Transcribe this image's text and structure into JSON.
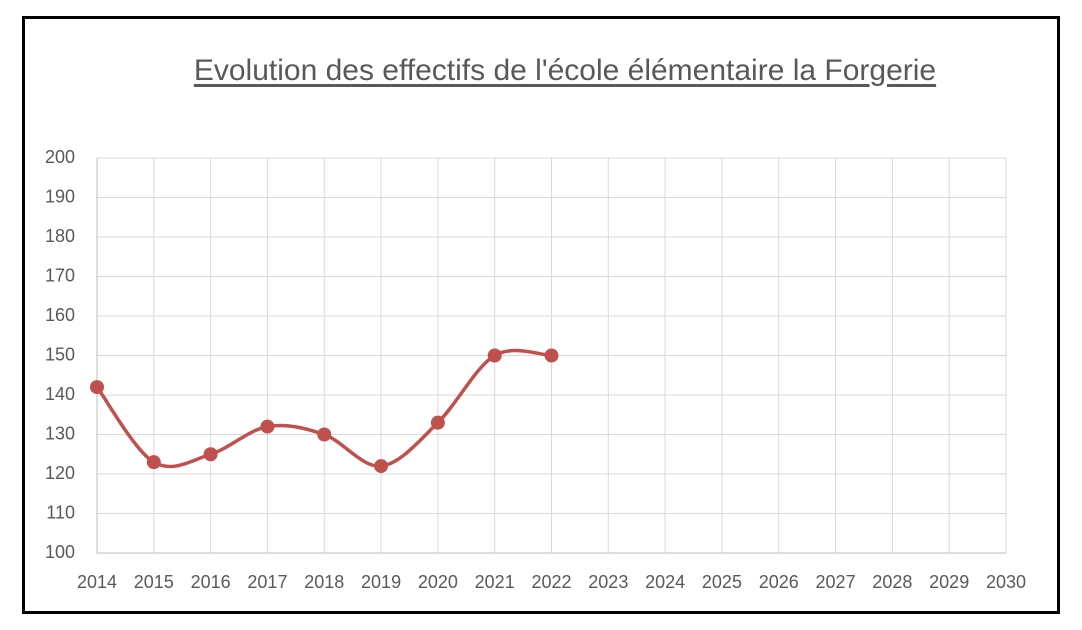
{
  "chart_data": {
    "type": "line",
    "title": "Evolution des effectifs de l'école élémentaire la Forgerie",
    "categories": [
      "2014",
      "2015",
      "2016",
      "2017",
      "2018",
      "2019",
      "2020",
      "2021",
      "2022",
      "2023",
      "2024",
      "2025",
      "2026",
      "2027",
      "2028",
      "2029",
      "2030"
    ],
    "series": [
      {
        "name": "Effectifs",
        "color": "#c0504d",
        "values": [
          142,
          123,
          125,
          132,
          130,
          122,
          133,
          150,
          150,
          null,
          null,
          null,
          null,
          null,
          null,
          null,
          null
        ]
      }
    ],
    "ylim": [
      100,
      200
    ],
    "yticks": [
      100,
      110,
      120,
      130,
      140,
      150,
      160,
      170,
      180,
      190,
      200
    ],
    "grid": true,
    "smooth": true
  }
}
